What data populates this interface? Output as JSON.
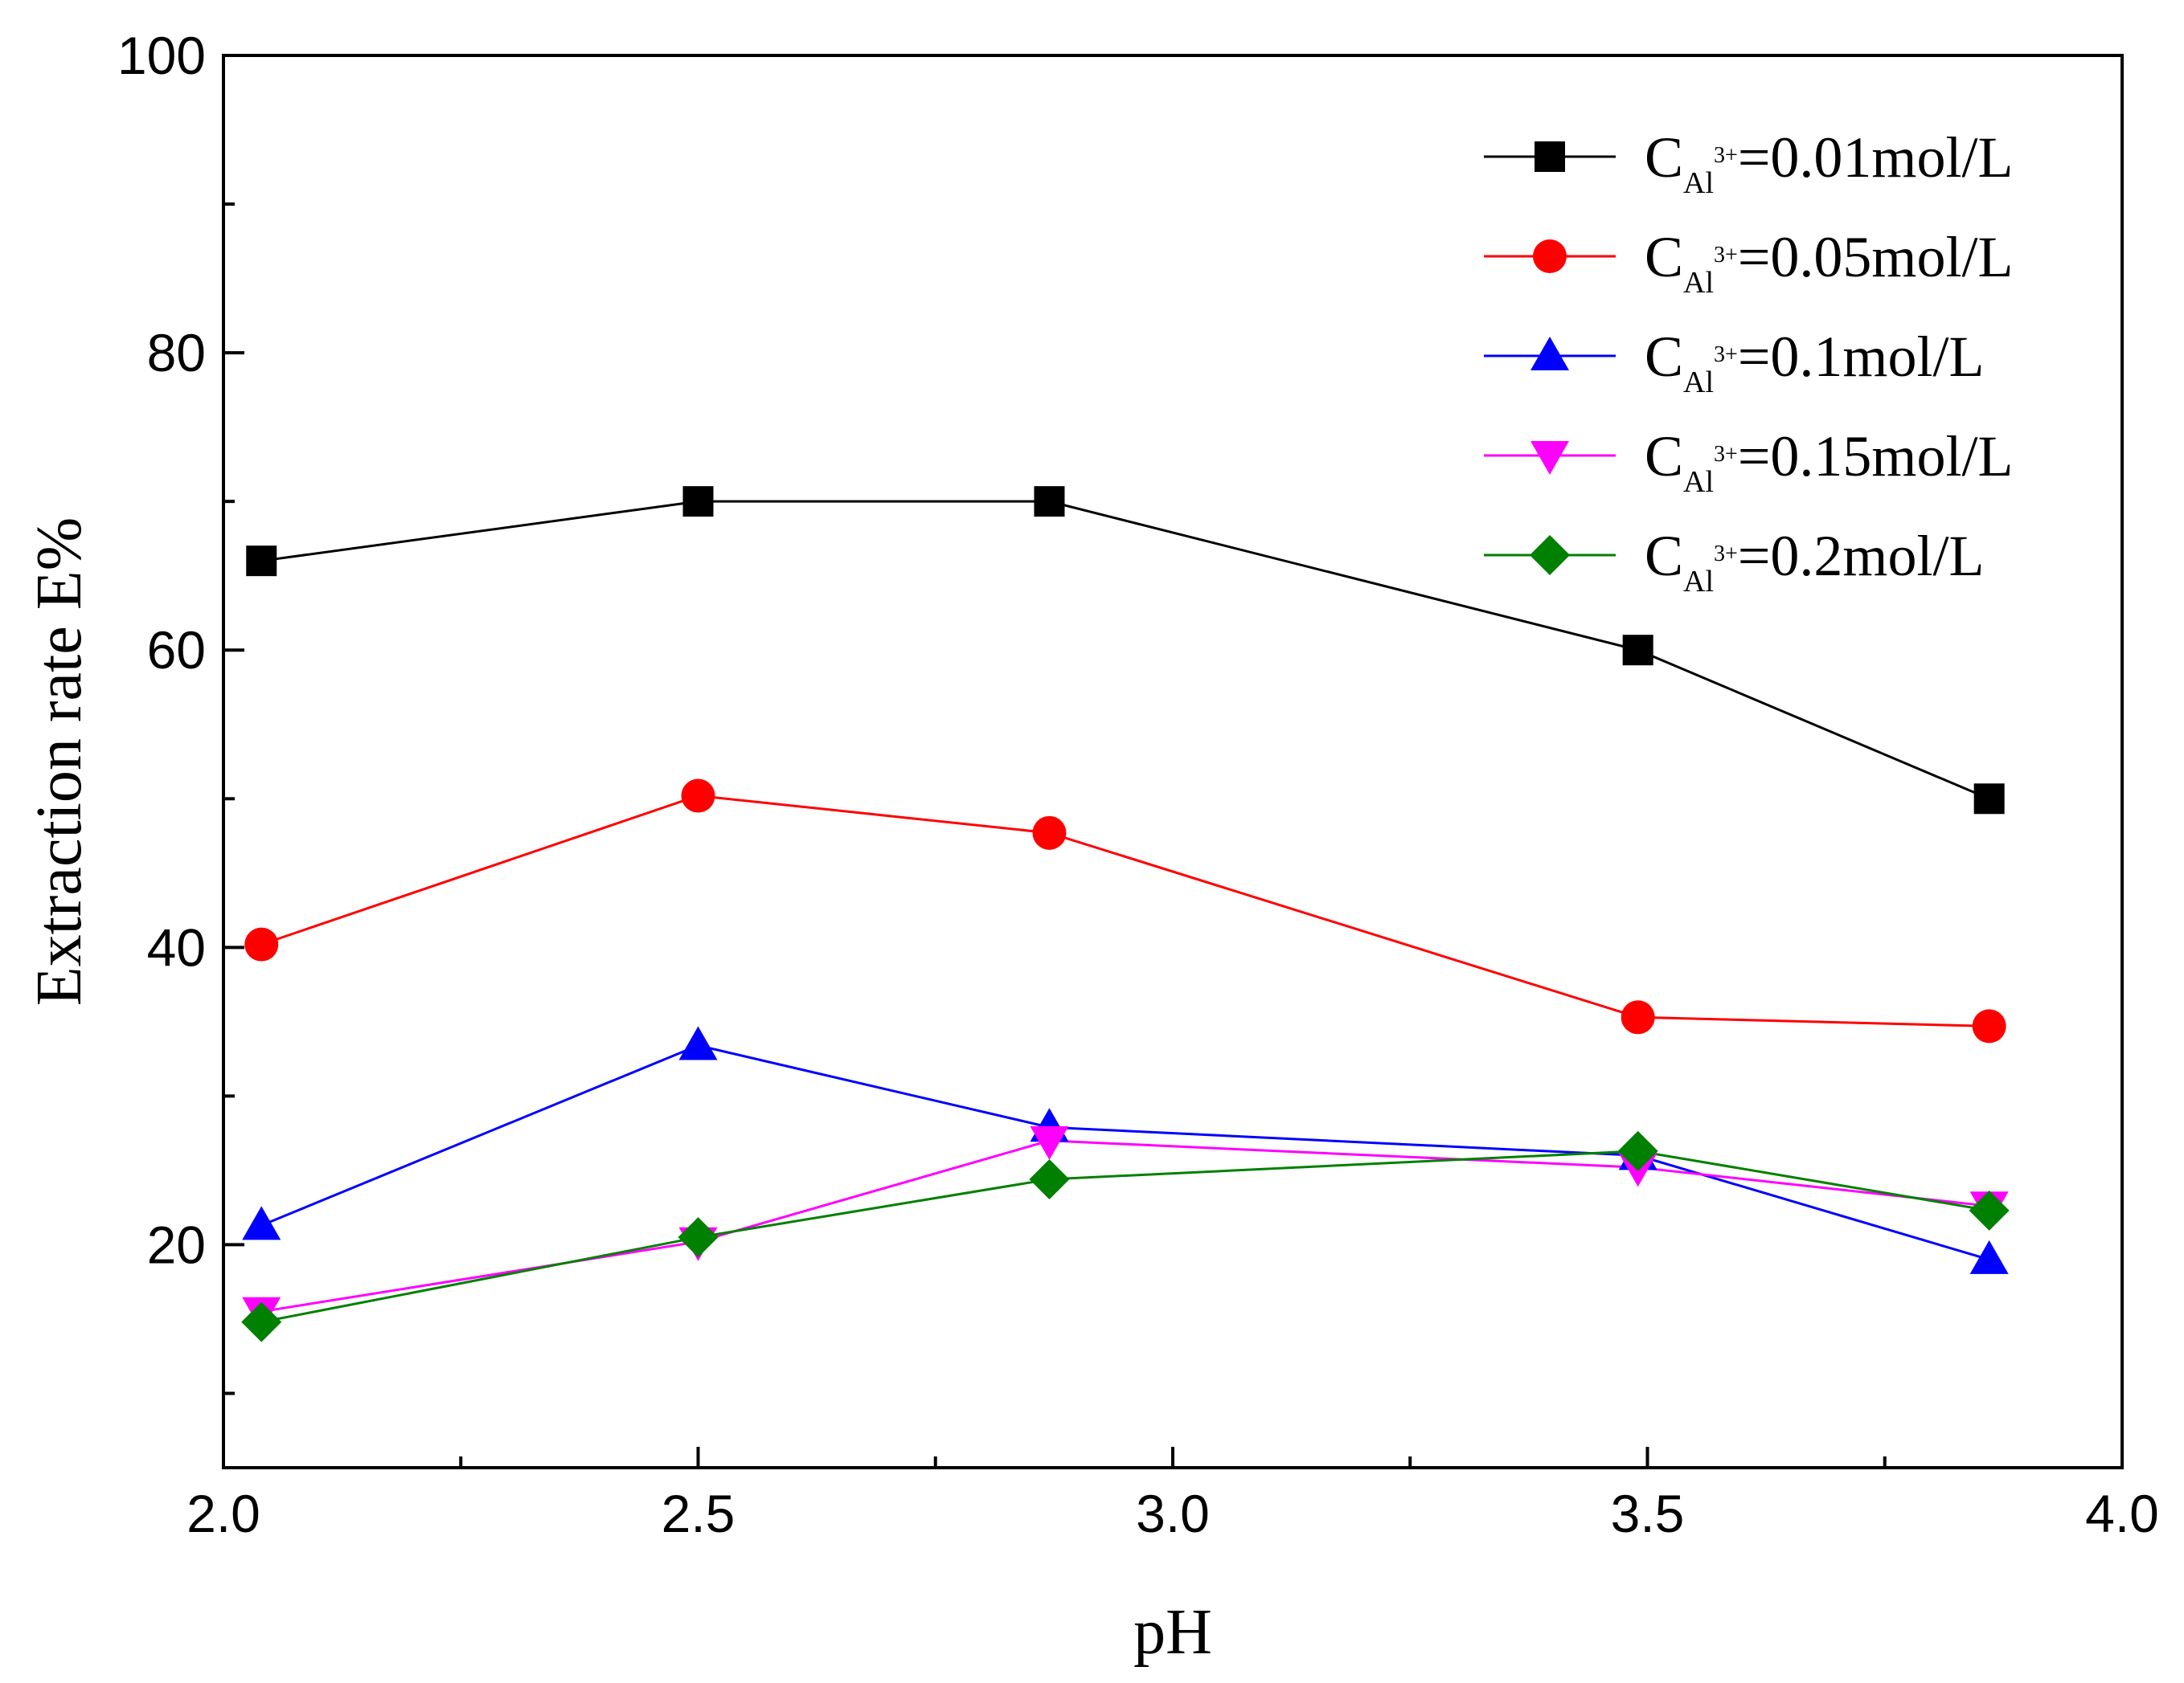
{
  "chart_data": {
    "type": "line",
    "title": "",
    "xlabel": "pH",
    "ylabel": "Extraction rate E%",
    "xlim": [
      2.0,
      4.0
    ],
    "ylim": [
      5,
      100
    ],
    "xticks": [
      "2.0",
      "2.5",
      "3.0",
      "3.5",
      "4.0"
    ],
    "yticks": [
      "20",
      "40",
      "60",
      "80",
      "100"
    ],
    "grid": false,
    "legend_position": "top-right",
    "x": [
      2.04,
      2.5,
      2.87,
      3.49,
      3.86
    ],
    "series": [
      {
        "name": "C_Al3+=0.01mol/L",
        "label_main": "C",
        "label_sub": "Al",
        "label_sup": "3+",
        "label_value": "=0.01mol/L",
        "color": "#000000",
        "marker": "square",
        "values": [
          66,
          70,
          70,
          60,
          50
        ]
      },
      {
        "name": "C_Al3+=0.05mol/L",
        "label_main": "C",
        "label_sub": "Al",
        "label_sup": "3+",
        "label_value": "=0.05mol/L",
        "color": "#ff0000",
        "marker": "circle",
        "values": [
          40.2,
          50.2,
          47.7,
          35.3,
          34.7
        ]
      },
      {
        "name": "C_Al3+=0.1mol/L",
        "label_main": "C",
        "label_sub": "Al",
        "label_sup": "3+",
        "label_value": "=0.1mol/L",
        "color": "#0000ff",
        "marker": "triangle-up",
        "values": [
          21.3,
          33.4,
          27.9,
          26,
          19
        ]
      },
      {
        "name": "C_Al3+=0.15mol/L",
        "label_main": "C",
        "label_sub": "Al",
        "label_sup": "3+",
        "label_value": "=0.15mol/L",
        "color": "#ff00ff",
        "marker": "triangle-down",
        "values": [
          15.5,
          20.2,
          27,
          25.2,
          22.6
        ]
      },
      {
        "name": "C_Al3+=0.2mol/L",
        "label_main": "C",
        "label_sub": "Al",
        "label_sup": "3+",
        "label_value": "=0.2mol/L",
        "color": "#008000",
        "marker": "diamond",
        "values": [
          14.8,
          20.5,
          24.4,
          26.3,
          22.3
        ]
      }
    ]
  }
}
